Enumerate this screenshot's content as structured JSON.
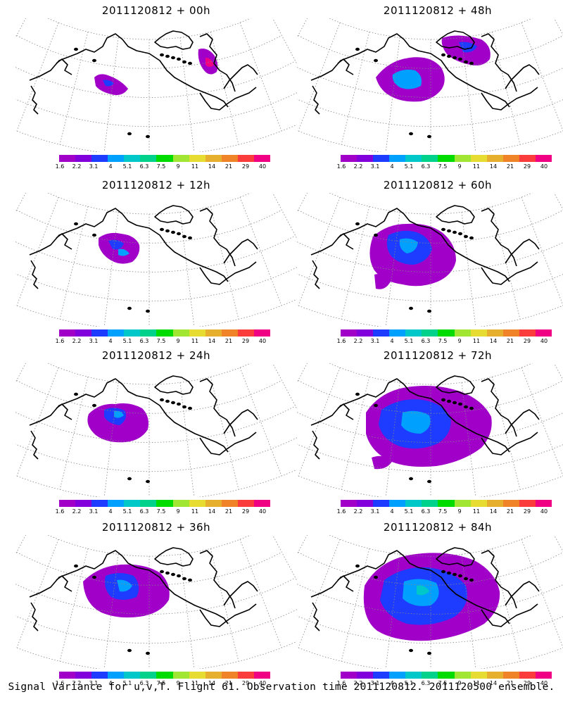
{
  "panels": [
    {
      "title": "2011120812 + 00h",
      "column": 0,
      "row": 0
    },
    {
      "title": "2011120812 + 48h",
      "column": 1,
      "row": 0
    },
    {
      "title": "2011120812 + 12h",
      "column": 0,
      "row": 1
    },
    {
      "title": "2011120812 + 60h",
      "column": 1,
      "row": 1
    },
    {
      "title": "2011120812 + 24h",
      "column": 0,
      "row": 2
    },
    {
      "title": "2011120812 + 72h",
      "column": 1,
      "row": 2
    },
    {
      "title": "2011120812 + 36h",
      "column": 0,
      "row": 3
    },
    {
      "title": "2011120812 + 84h",
      "column": 1,
      "row": 3
    }
  ],
  "colorbar": {
    "labels": [
      "1.6",
      "2.2",
      "3.1",
      "4",
      "5.1",
      "6.3",
      "7.5",
      "9",
      "11",
      "14",
      "21",
      "29",
      "40"
    ],
    "colors": [
      "#a000c8",
      "#8200dc",
      "#1e3cff",
      "#00a0ff",
      "#00c8c8",
      "#00d28c",
      "#00dc00",
      "#a0e632",
      "#e6dc32",
      "#e6af2d",
      "#f08228",
      "#fa3c3c",
      "#f00082"
    ]
  },
  "footer": "Signal Variance for u,v,T. Flight 61. Observation time 2011120812. 2011120500 ensemble."
}
